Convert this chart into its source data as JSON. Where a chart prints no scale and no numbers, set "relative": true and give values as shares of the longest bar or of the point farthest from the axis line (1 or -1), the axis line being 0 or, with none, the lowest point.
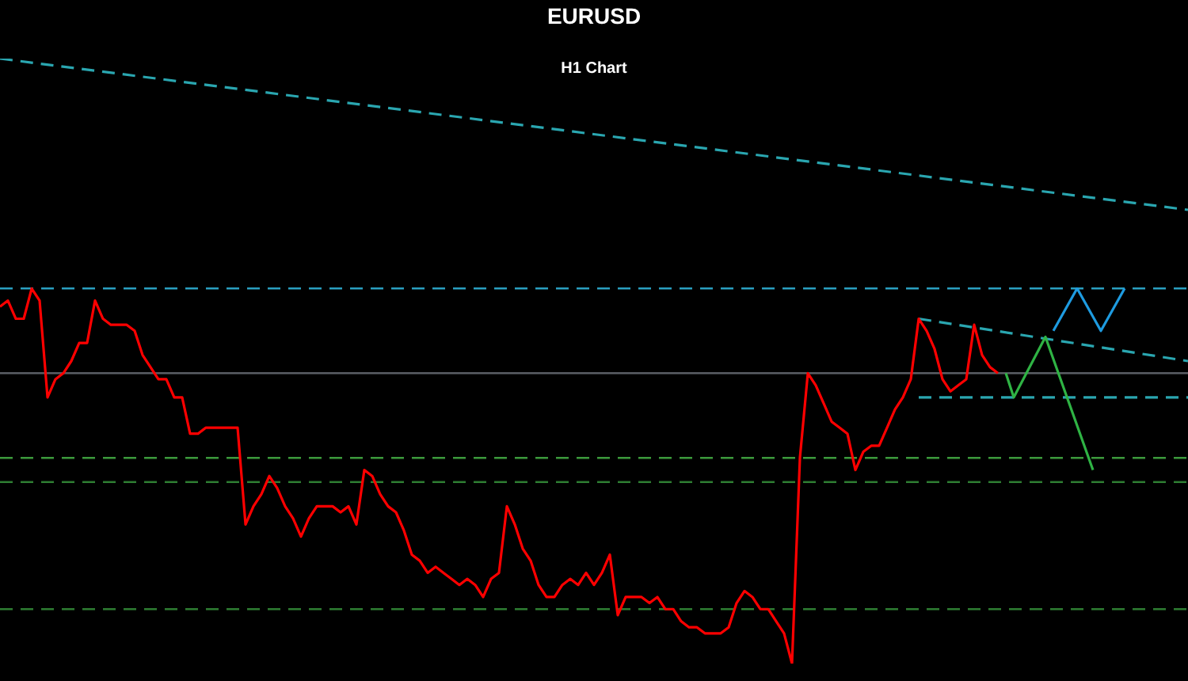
{
  "chart_data": {
    "type": "line",
    "title": "EURUSD",
    "subtitle": "H1 Chart",
    "relative": true,
    "grid": false,
    "legend": false,
    "tick_labels": false,
    "marker": "none",
    "categories": [
      null,
      null,
      null,
      null,
      null,
      null,
      null,
      null,
      null,
      null,
      null,
      null,
      null,
      null,
      null,
      null,
      null,
      null,
      null,
      null,
      null,
      null,
      null,
      null,
      null,
      null,
      null,
      null,
      null,
      null,
      null,
      null,
      null,
      null,
      null,
      null,
      null,
      null,
      null,
      null,
      null,
      null,
      null,
      null,
      null,
      null,
      null,
      null,
      null,
      null,
      null,
      null,
      null,
      null,
      null,
      null,
      null,
      null,
      null,
      null,
      null,
      null,
      null,
      null,
      null,
      null,
      null,
      null,
      null,
      null,
      null,
      null,
      null,
      null,
      null,
      null,
      null,
      null,
      null,
      null,
      null,
      null,
      null,
      null,
      null,
      null,
      null,
      null,
      null,
      null,
      null,
      null,
      null,
      null,
      null,
      null,
      null,
      null,
      null,
      null,
      null,
      null,
      null,
      null,
      null,
      null,
      null,
      null,
      null,
      null,
      null,
      null,
      null,
      null,
      null,
      null,
      null,
      null,
      null,
      null,
      null,
      null,
      null,
      null,
      null,
      null,
      null,
      null,
      null,
      null,
      null,
      null,
      null,
      null,
      null,
      null,
      null,
      null,
      null,
      null,
      null,
      null,
      null,
      null,
      null,
      null,
      null,
      null,
      null,
      null,
      null
    ],
    "series": [
      {
        "color": "#ff0000",
        "line_style": "solid",
        "values": [
          0.59,
          0.6,
          0.57,
          0.57,
          0.62,
          0.6,
          0.44,
          0.47,
          0.48,
          0.5,
          0.53,
          0.53,
          0.6,
          0.57,
          0.56,
          0.56,
          0.56,
          0.55,
          0.51,
          0.49,
          0.47,
          0.47,
          0.44,
          0.44,
          0.38,
          0.38,
          0.39,
          0.39,
          0.39,
          0.39,
          0.39,
          0.23,
          0.26,
          0.28,
          0.31,
          0.29,
          0.26,
          0.24,
          0.21,
          0.24,
          0.26,
          0.26,
          0.26,
          0.25,
          0.26,
          0.23,
          0.32,
          0.31,
          0.28,
          0.26,
          0.25,
          0.22,
          0.18,
          0.17,
          0.15,
          0.16,
          0.15,
          0.14,
          0.13,
          0.14,
          0.13,
          0.11,
          0.14,
          0.15,
          0.26,
          0.23,
          0.19,
          0.17,
          0.13,
          0.11,
          0.11,
          0.13,
          0.14,
          0.13,
          0.15,
          0.13,
          0.15,
          0.18,
          0.08,
          0.11,
          0.11,
          0.11,
          0.1,
          0.11,
          0.09,
          0.09,
          0.07,
          0.06,
          0.06,
          0.05,
          0.05,
          0.05,
          0.06,
          0.1,
          0.12,
          0.11,
          0.09,
          0.09,
          0.07,
          0.05,
          0,
          0.34,
          0.48,
          0.46,
          0.43,
          0.4,
          0.39,
          0.38,
          0.32,
          0.35,
          0.36,
          0.36,
          0.39,
          0.42,
          0.44,
          0.47,
          0.57,
          0.55,
          0.52,
          0.47,
          0.45,
          0.46,
          0.47,
          0.56,
          0.51,
          0.49,
          0.48,
          null,
          null,
          null,
          null,
          null,
          null,
          null,
          null,
          null,
          null,
          null,
          null,
          null,
          null,
          null,
          null,
          null,
          null,
          null,
          null,
          null,
          null,
          null,
          null
        ]
      },
      {
        "color": "#2fb344",
        "line_style": "solid",
        "values": [
          null,
          null,
          null,
          null,
          null,
          null,
          null,
          null,
          null,
          null,
          null,
          null,
          null,
          null,
          null,
          null,
          null,
          null,
          null,
          null,
          null,
          null,
          null,
          null,
          null,
          null,
          null,
          null,
          null,
          null,
          null,
          null,
          null,
          null,
          null,
          null,
          null,
          null,
          null,
          null,
          null,
          null,
          null,
          null,
          null,
          null,
          null,
          null,
          null,
          null,
          null,
          null,
          null,
          null,
          null,
          null,
          null,
          null,
          null,
          null,
          null,
          null,
          null,
          null,
          null,
          null,
          null,
          null,
          null,
          null,
          null,
          null,
          null,
          null,
          null,
          null,
          null,
          null,
          null,
          null,
          null,
          null,
          null,
          null,
          null,
          null,
          null,
          null,
          null,
          null,
          null,
          null,
          null,
          null,
          null,
          null,
          null,
          null,
          null,
          null,
          null,
          null,
          null,
          null,
          null,
          null,
          null,
          null,
          null,
          null,
          null,
          null,
          null,
          null,
          null,
          null,
          null,
          null,
          null,
          null,
          null,
          null,
          null,
          null,
          null,
          null,
          null,
          0.48,
          0.44,
          null,
          null,
          null,
          0.54,
          null,
          null,
          null,
          null,
          null,
          0.32,
          null,
          null,
          null,
          null,
          null,
          null,
          null,
          null,
          null,
          null,
          null,
          null
        ]
      },
      {
        "color": "#1e9be0",
        "line_style": "solid",
        "values": [
          null,
          null,
          null,
          null,
          null,
          null,
          null,
          null,
          null,
          null,
          null,
          null,
          null,
          null,
          null,
          null,
          null,
          null,
          null,
          null,
          null,
          null,
          null,
          null,
          null,
          null,
          null,
          null,
          null,
          null,
          null,
          null,
          null,
          null,
          null,
          null,
          null,
          null,
          null,
          null,
          null,
          null,
          null,
          null,
          null,
          null,
          null,
          null,
          null,
          null,
          null,
          null,
          null,
          null,
          null,
          null,
          null,
          null,
          null,
          null,
          null,
          null,
          null,
          null,
          null,
          null,
          null,
          null,
          null,
          null,
          null,
          null,
          null,
          null,
          null,
          null,
          null,
          null,
          null,
          null,
          null,
          null,
          null,
          null,
          null,
          null,
          null,
          null,
          null,
          null,
          null,
          null,
          null,
          null,
          null,
          null,
          null,
          null,
          null,
          null,
          null,
          null,
          null,
          null,
          null,
          null,
          null,
          null,
          null,
          null,
          null,
          null,
          null,
          null,
          null,
          null,
          null,
          null,
          null,
          null,
          null,
          null,
          null,
          null,
          null,
          null,
          null,
          null,
          null,
          null,
          null,
          null,
          null,
          0.55,
          null,
          null,
          0.62,
          null,
          null,
          0.55,
          null,
          null,
          0.62,
          null,
          null,
          null,
          null,
          null,
          null,
          null,
          null
        ]
      },
      {
        "color": "#2aa6b0",
        "line_style": "dashed",
        "values": [
          1.0,
          null,
          null,
          null,
          null,
          null,
          null,
          null,
          null,
          null,
          null,
          null,
          null,
          null,
          null,
          null,
          null,
          null,
          null,
          null,
          null,
          null,
          null,
          null,
          null,
          null,
          null,
          null,
          null,
          null,
          null,
          null,
          null,
          null,
          null,
          null,
          null,
          null,
          null,
          null,
          null,
          null,
          null,
          null,
          null,
          null,
          null,
          null,
          null,
          null,
          null,
          null,
          null,
          null,
          null,
          null,
          null,
          null,
          null,
          null,
          null,
          null,
          null,
          null,
          null,
          null,
          null,
          null,
          null,
          null,
          null,
          null,
          null,
          null,
          null,
          null,
          null,
          null,
          null,
          null,
          null,
          null,
          null,
          null,
          null,
          null,
          null,
          null,
          null,
          null,
          null,
          null,
          null,
          null,
          null,
          null,
          null,
          null,
          null,
          null,
          null,
          null,
          null,
          null,
          null,
          null,
          null,
          null,
          null,
          null,
          null,
          null,
          null,
          null,
          null,
          null,
          null,
          null,
          null,
          null,
          null,
          null,
          null,
          null,
          null,
          null,
          null,
          null,
          null,
          null,
          null,
          null,
          null,
          null,
          null,
          null,
          null,
          null,
          null,
          null,
          null,
          null,
          null,
          null,
          null,
          null,
          null,
          null,
          null,
          null,
          0.75
        ]
      },
      {
        "color": "#2aa6b0",
        "line_style": "dashed",
        "values": [
          null,
          null,
          null,
          null,
          null,
          null,
          null,
          null,
          null,
          null,
          null,
          null,
          null,
          null,
          null,
          null,
          null,
          null,
          null,
          null,
          null,
          null,
          null,
          null,
          null,
          null,
          null,
          null,
          null,
          null,
          null,
          null,
          null,
          null,
          null,
          null,
          null,
          null,
          null,
          null,
          null,
          null,
          null,
          null,
          null,
          null,
          null,
          null,
          null,
          null,
          null,
          null,
          null,
          null,
          null,
          null,
          null,
          null,
          null,
          null,
          null,
          null,
          null,
          null,
          null,
          null,
          null,
          null,
          null,
          null,
          null,
          null,
          null,
          null,
          null,
          null,
          null,
          null,
          null,
          null,
          null,
          null,
          null,
          null,
          null,
          null,
          null,
          null,
          null,
          null,
          null,
          null,
          null,
          null,
          null,
          null,
          null,
          null,
          null,
          null,
          null,
          null,
          null,
          null,
          null,
          null,
          null,
          null,
          null,
          null,
          null,
          null,
          null,
          null,
          null,
          null,
          0.57,
          null,
          null,
          null,
          null,
          null,
          null,
          null,
          null,
          null,
          null,
          null,
          null,
          null,
          null,
          null,
          null,
          null,
          null,
          null,
          null,
          null,
          null,
          null,
          null,
          null,
          null,
          null,
          null,
          null,
          null,
          null,
          null,
          null,
          0.5
        ]
      },
      {
        "color": "#2aa6b0",
        "line_style": "dashed",
        "values": [
          null,
          null,
          null,
          null,
          null,
          null,
          null,
          null,
          null,
          null,
          null,
          null,
          null,
          null,
          null,
          null,
          null,
          null,
          null,
          null,
          null,
          null,
          null,
          null,
          null,
          null,
          null,
          null,
          null,
          null,
          null,
          null,
          null,
          null,
          null,
          null,
          null,
          null,
          null,
          null,
          null,
          null,
          null,
          null,
          null,
          null,
          null,
          null,
          null,
          null,
          null,
          null,
          null,
          null,
          null,
          null,
          null,
          null,
          null,
          null,
          null,
          null,
          null,
          null,
          null,
          null,
          null,
          null,
          null,
          null,
          null,
          null,
          null,
          null,
          null,
          null,
          null,
          null,
          null,
          null,
          null,
          null,
          null,
          null,
          null,
          null,
          null,
          null,
          null,
          null,
          null,
          null,
          null,
          null,
          null,
          null,
          null,
          null,
          null,
          null,
          null,
          null,
          null,
          null,
          null,
          null,
          null,
          null,
          null,
          null,
          null,
          null,
          null,
          null,
          null,
          null,
          0.44,
          null,
          null,
          null,
          null,
          null,
          null,
          null,
          null,
          null,
          null,
          null,
          null,
          null,
          null,
          null,
          null,
          null,
          null,
          null,
          null,
          null,
          null,
          null,
          null,
          null,
          null,
          null,
          null,
          null,
          null,
          null,
          null,
          null,
          0.44
        ]
      }
    ],
    "ref_lines": [
      {
        "axis": "y",
        "value": 0.62,
        "color": "#2a9fc0",
        "line_style": "dashed"
      },
      {
        "axis": "y",
        "value": 0.48,
        "color": "#5a5e64",
        "line_style": "solid"
      },
      {
        "axis": "y",
        "value": 0.34,
        "color": "#3c9a3c",
        "line_style": "dashed"
      },
      {
        "axis": "y",
        "value": 0.3,
        "color": "#2e7d32",
        "line_style": "dashed"
      },
      {
        "axis": "y",
        "value": 0.09,
        "color": "#2e7d32",
        "line_style": "dashed"
      }
    ]
  }
}
